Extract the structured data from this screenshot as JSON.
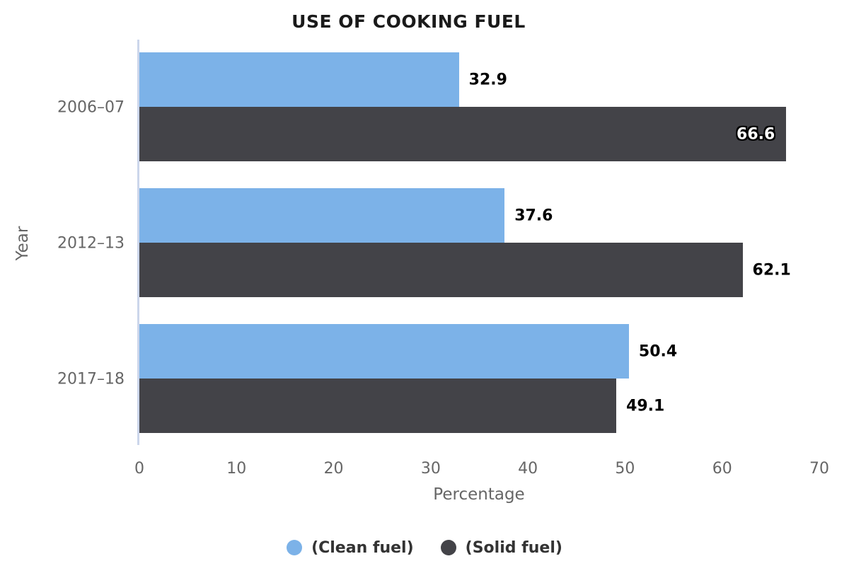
{
  "chart_data": {
    "type": "bar",
    "orientation": "horizontal",
    "title": "USE OF COOKING FUEL",
    "xlabel": "Percentage",
    "ylabel": "Year",
    "categories": [
      "2006–07",
      "2012–13",
      "2017–18"
    ],
    "series": [
      {
        "name": "(Clean fuel)",
        "color": "#7cb2e8",
        "values": [
          32.9,
          37.6,
          50.4
        ]
      },
      {
        "name": "(Solid fuel)",
        "color": "#434348",
        "values": [
          66.6,
          62.1,
          49.1
        ]
      }
    ],
    "xlim": [
      0,
      70
    ],
    "xticks": [
      0,
      10,
      20,
      30,
      40,
      50,
      60,
      70
    ],
    "grid": false,
    "legend_position": "bottom",
    "colors": {
      "axis_line": "#ccd6eb",
      "axis_text": "#666666",
      "value_label": "#000000",
      "value_label_inside": "#ffffff",
      "legend_text": "#333333",
      "title": "#1a1a1a",
      "background": "#ffffff"
    }
  }
}
